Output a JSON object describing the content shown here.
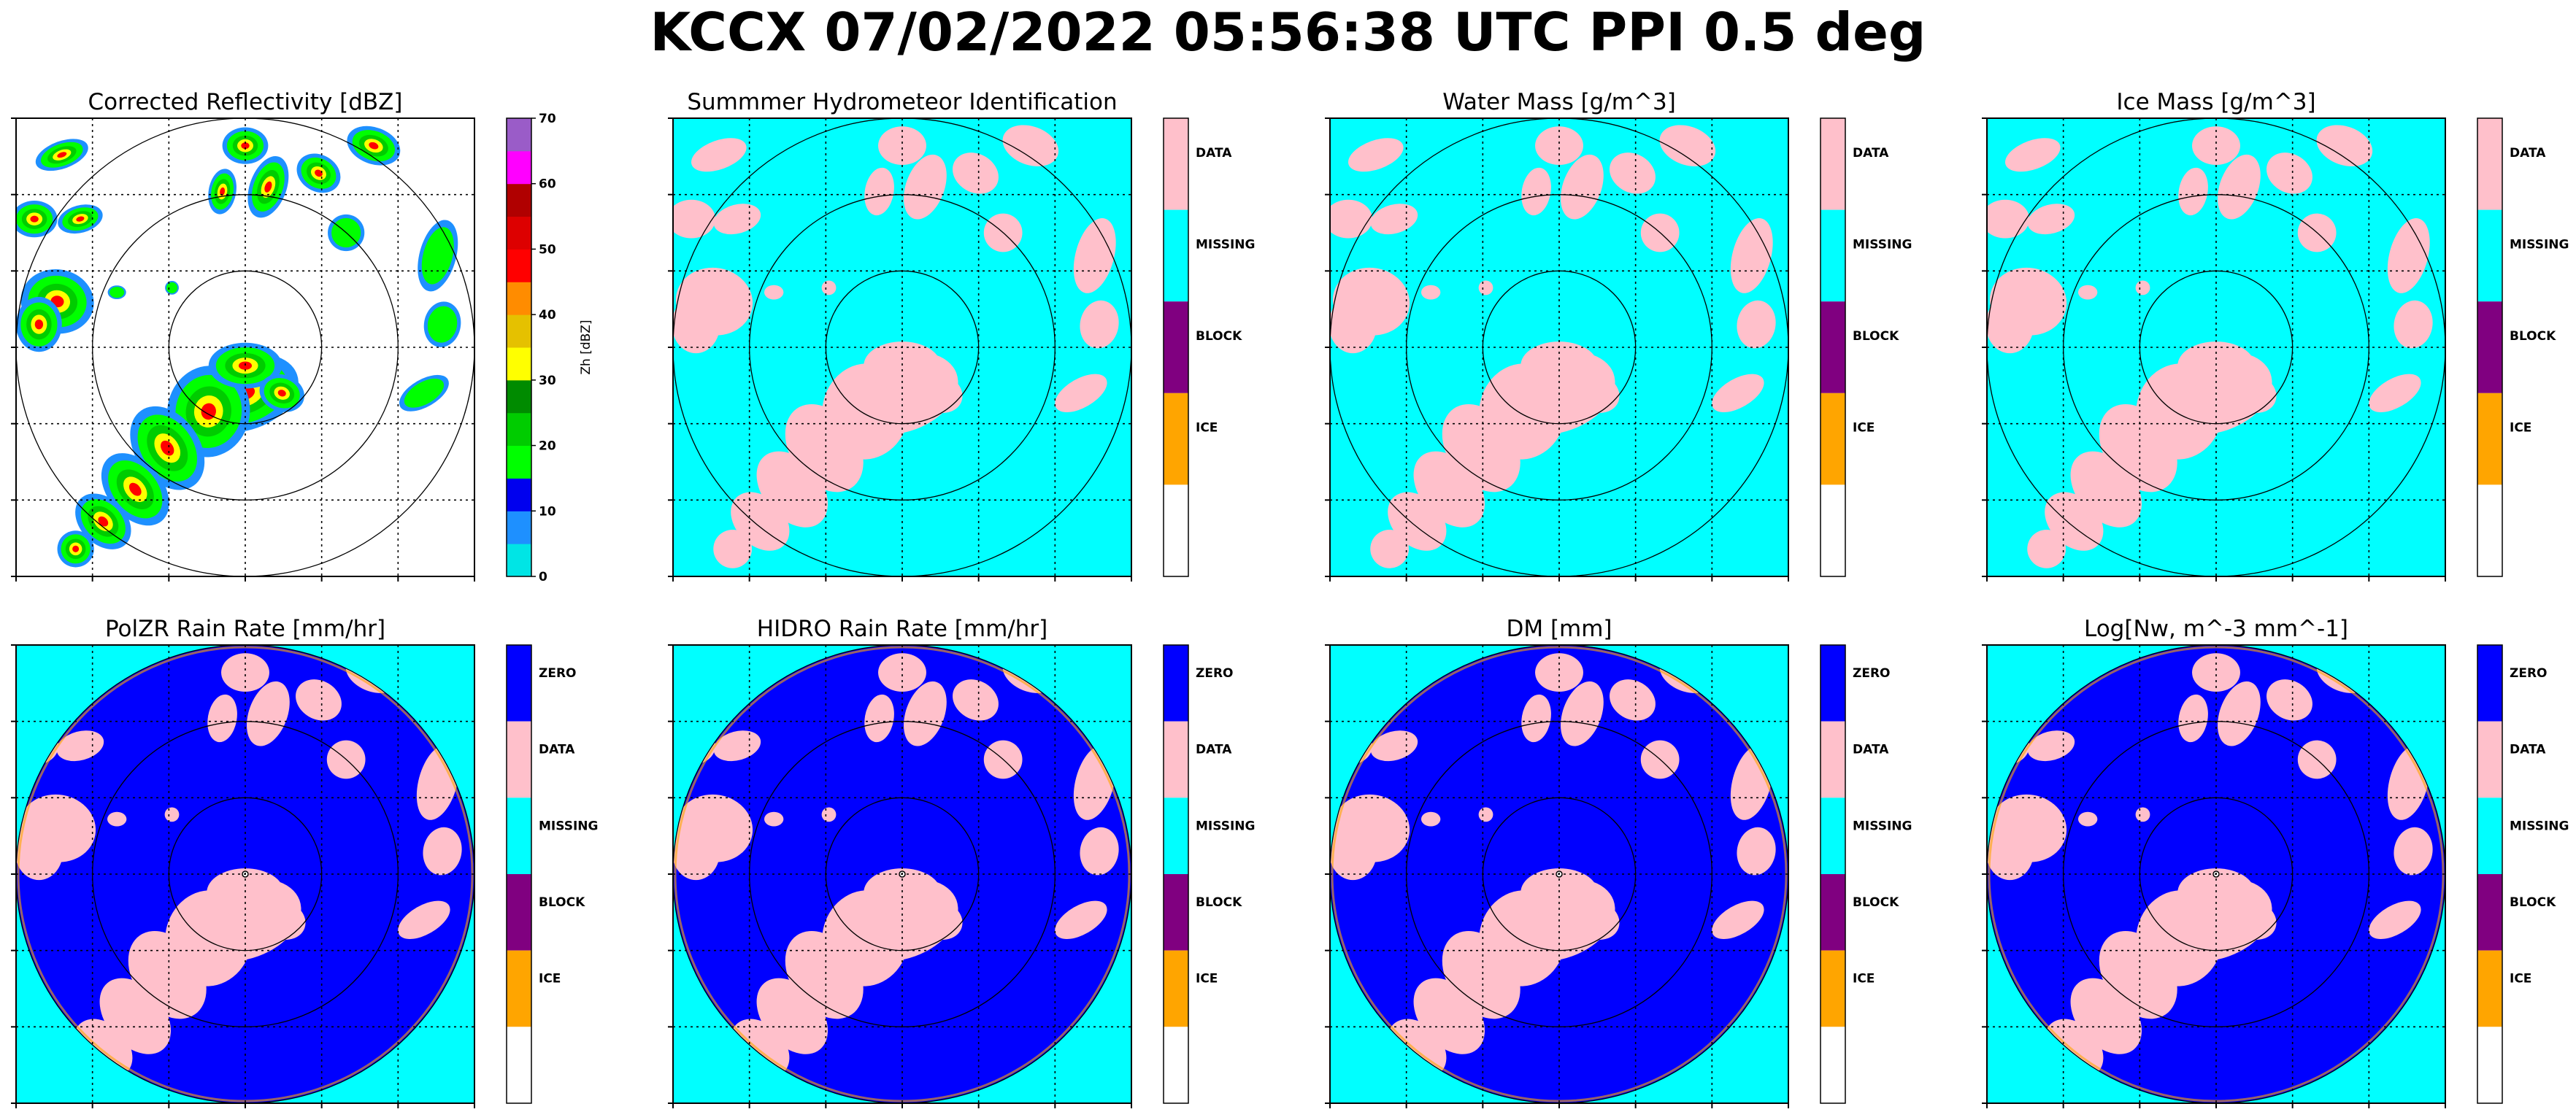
{
  "figure": {
    "title": "KCCX 07/02/2022 05:56:38 UTC PPI 0.5 deg"
  },
  "colors": {
    "background_missing": "#00ffff",
    "data": "#ffc0cb",
    "zero": "#0000ff",
    "block": "#800080",
    "ice": "#ffa500",
    "empty": "#ffffff"
  },
  "chart_data": [
    {
      "type": "heatmap",
      "title": "Corrected Reflectivity [dBZ]",
      "field": "reflectivity",
      "colorbar": {
        "kind": "continuous",
        "label": "Zh [dBZ]",
        "ticks": [
          "0",
          "10",
          "20",
          "30",
          "40",
          "50",
          "60",
          "70"
        ],
        "range": [
          0,
          70
        ],
        "colors": [
          "#00e5e5",
          "#1e90ff",
          "#0000ee",
          "#00ff00",
          "#00cc00",
          "#008b00",
          "#ffff00",
          "#e5c100",
          "#ff8c00",
          "#ff0000",
          "#dd0000",
          "#b00000",
          "#ff00ff",
          "#9a5cc8"
        ]
      },
      "range_rings": 3,
      "grid": true
    },
    {
      "type": "heatmap",
      "title": "Summmer Hydrometeor Identification",
      "field": "category",
      "colorbar": {
        "kind": "categorical",
        "categories": [
          "DATA",
          "MISSING",
          "BLOCK",
          "ICE",
          ""
        ],
        "colors": [
          "#ffc0cb",
          "#00ffff",
          "#800080",
          "#ffa500",
          "#ffffff"
        ]
      },
      "range_rings": 3,
      "grid": true
    },
    {
      "type": "heatmap",
      "title": "Water Mass [g/m^3]",
      "field": "category",
      "colorbar": {
        "kind": "categorical",
        "categories": [
          "DATA",
          "MISSING",
          "BLOCK",
          "ICE",
          ""
        ],
        "colors": [
          "#ffc0cb",
          "#00ffff",
          "#800080",
          "#ffa500",
          "#ffffff"
        ]
      },
      "range_rings": 3,
      "grid": true
    },
    {
      "type": "heatmap",
      "title": "Ice Mass [g/m^3]",
      "field": "category",
      "colorbar": {
        "kind": "categorical",
        "categories": [
          "DATA",
          "MISSING",
          "BLOCK",
          "ICE",
          ""
        ],
        "colors": [
          "#ffc0cb",
          "#00ffff",
          "#800080",
          "#ffa500",
          "#ffffff"
        ]
      },
      "range_rings": 3,
      "grid": true
    },
    {
      "type": "heatmap",
      "title": "PolZR Rain Rate [mm/hr]",
      "field": "rate",
      "colorbar": {
        "kind": "categorical",
        "categories": [
          "ZERO",
          "DATA",
          "MISSING",
          "BLOCK",
          "ICE",
          ""
        ],
        "colors": [
          "#0000ff",
          "#ffc0cb",
          "#00ffff",
          "#800080",
          "#ffa500",
          "#ffffff"
        ]
      },
      "range_rings": 3,
      "grid": true
    },
    {
      "type": "heatmap",
      "title": "HIDRO Rain Rate [mm/hr]",
      "field": "rate",
      "colorbar": {
        "kind": "categorical",
        "categories": [
          "ZERO",
          "DATA",
          "MISSING",
          "BLOCK",
          "ICE",
          ""
        ],
        "colors": [
          "#0000ff",
          "#ffc0cb",
          "#00ffff",
          "#800080",
          "#ffa500",
          "#ffffff"
        ]
      },
      "range_rings": 3,
      "grid": true
    },
    {
      "type": "heatmap",
      "title": "DM [mm]",
      "field": "rate",
      "colorbar": {
        "kind": "categorical",
        "categories": [
          "ZERO",
          "DATA",
          "MISSING",
          "BLOCK",
          "ICE",
          ""
        ],
        "colors": [
          "#0000ff",
          "#ffc0cb",
          "#00ffff",
          "#800080",
          "#ffa500",
          "#ffffff"
        ]
      },
      "range_rings": 3,
      "grid": true
    },
    {
      "type": "heatmap",
      "title": "Log[Nw, m^-3 mm^-1]",
      "field": "rate",
      "colorbar": {
        "kind": "categorical",
        "categories": [
          "ZERO",
          "DATA",
          "MISSING",
          "BLOCK",
          "ICE",
          ""
        ],
        "colors": [
          "#0000ff",
          "#ffc0cb",
          "#00ffff",
          "#800080",
          "#ffa500",
          "#ffffff"
        ]
      },
      "range_rings": 3,
      "grid": true
    }
  ]
}
